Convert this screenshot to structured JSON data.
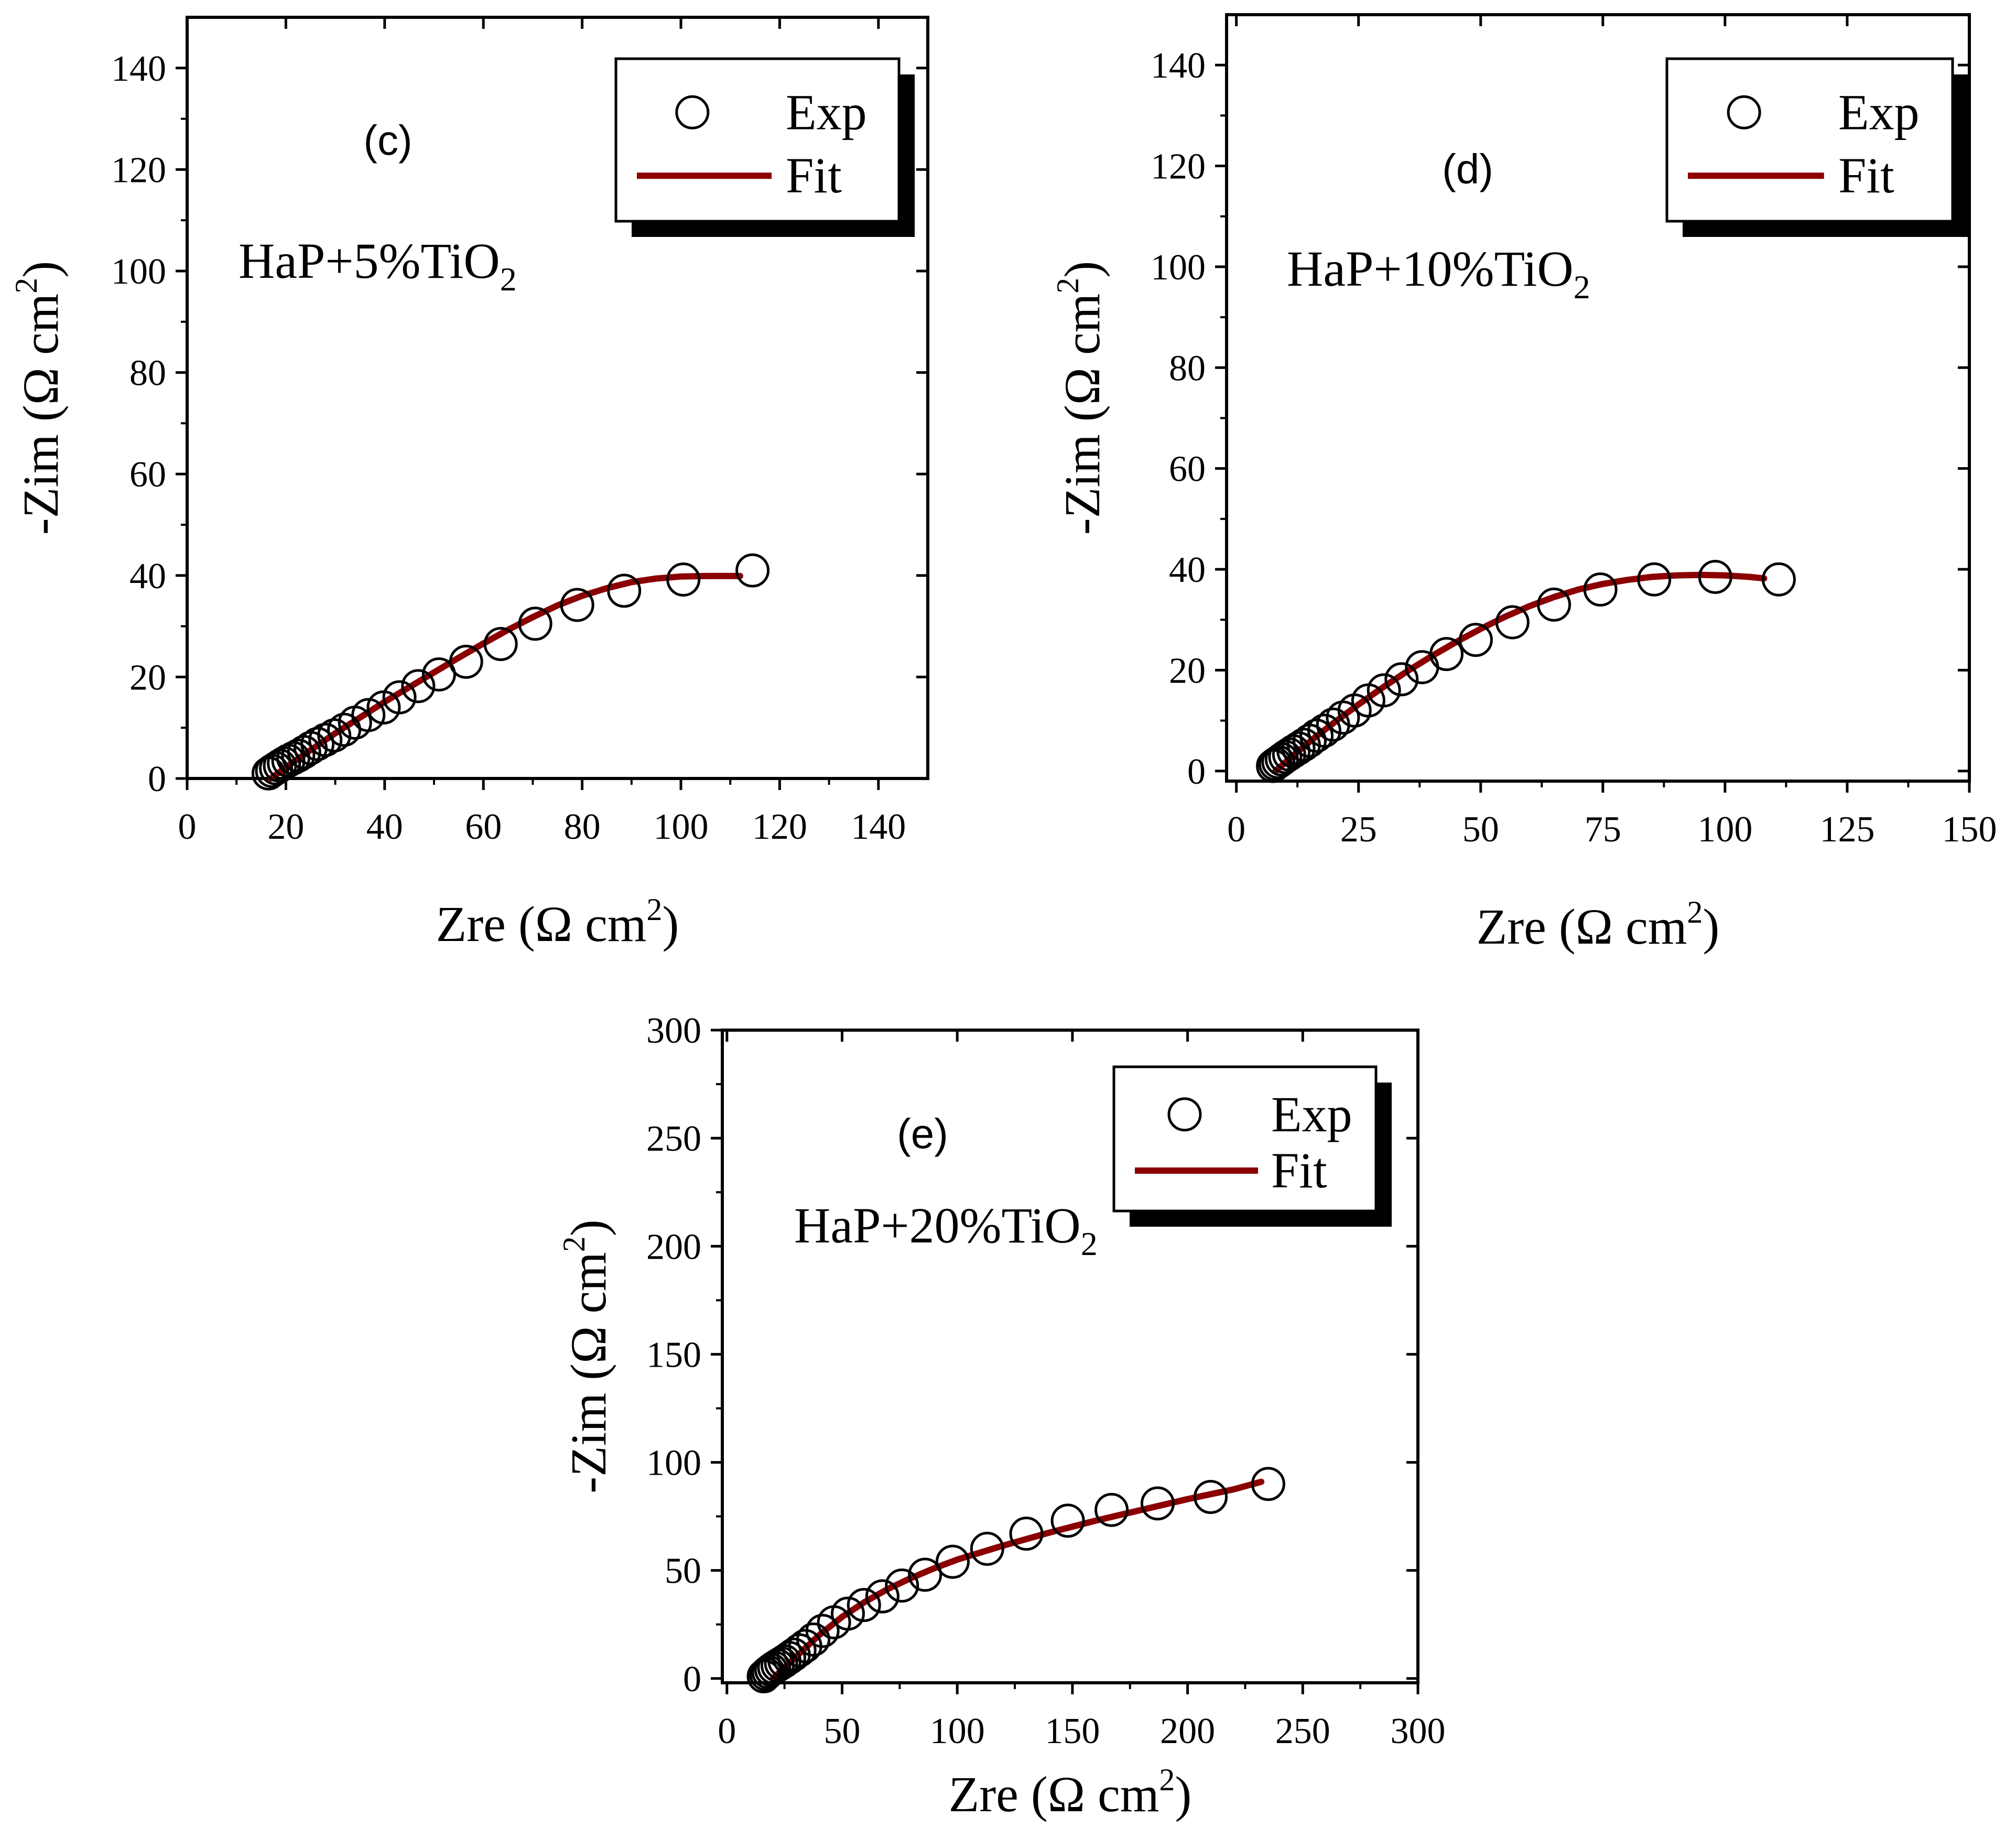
{
  "colors": {
    "fit": "#8b0000",
    "axis": "#000000",
    "marker_stroke": "#000000",
    "background": "#ffffff"
  },
  "chart_data": [
    {
      "id": "c",
      "type": "scatter",
      "tag": "(c)",
      "sample_prefix": "HaP+5%TiO",
      "sample_sub": "2",
      "xlabel_main": "Zre (Ω cm",
      "xlabel_sup": "2",
      "xlabel_end": ")",
      "ylabel_main": "-Zim  (Ω cm",
      "ylabel_sup": "2",
      "ylabel_end": ")",
      "xlim": [
        0,
        150
      ],
      "ylim": [
        0,
        150
      ],
      "xticks": [
        "0",
        "20",
        "40",
        "60",
        "80",
        "100",
        "120",
        "140"
      ],
      "xtick_values": [
        0,
        20,
        40,
        60,
        80,
        100,
        120,
        140
      ],
      "yticks": [
        "0",
        "20",
        "40",
        "60",
        "80",
        "100",
        "120",
        "140"
      ],
      "ytick_values": [
        0,
        20,
        40,
        60,
        80,
        100,
        120,
        140
      ],
      "legend": {
        "exp": "Exp",
        "fit": "Fit"
      },
      "series": [
        {
          "name": "Exp",
          "kind": "markers",
          "x": [
            16.5,
            17.2,
            18,
            18.8,
            19.6,
            20.5,
            21.5,
            22.5,
            23.7,
            25,
            26.4,
            28,
            29.8,
            31.8,
            34,
            36.7,
            39.8,
            43,
            46.8,
            51,
            56.5,
            63.5,
            70.5,
            79,
            88.5,
            100.5,
            114.5
          ],
          "y": [
            1,
            1.5,
            2,
            2.5,
            3,
            3.5,
            4,
            4.5,
            5.2,
            6,
            6.8,
            7.6,
            8.5,
            9.6,
            11,
            12.5,
            14,
            16,
            18.2,
            20.5,
            23,
            26.5,
            30.5,
            34.2,
            37,
            39.2,
            41
          ]
        },
        {
          "name": "Fit",
          "kind": "line",
          "x": [
            17,
            20,
            25,
            30,
            35,
            40,
            45,
            50,
            55,
            60,
            65,
            70,
            75,
            80,
            85,
            90,
            95,
            100,
            105,
            112
          ],
          "y": [
            0,
            2.2,
            5.6,
            8.9,
            12,
            15.1,
            18,
            20.9,
            23.8,
            26.6,
            29.3,
            31.8,
            34.1,
            36,
            37.5,
            38.7,
            39.4,
            39.8,
            39.9,
            39.9
          ]
        }
      ]
    },
    {
      "id": "d",
      "type": "scatter",
      "tag": "(d)",
      "sample_prefix": "HaP+10%TiO",
      "sample_sub": "2",
      "xlabel_main": "Zre (Ω cm",
      "xlabel_sup": "2",
      "xlabel_end": ")",
      "ylabel_main": "-Zim  (Ω cm",
      "ylabel_sup": "2",
      "ylabel_end": ")",
      "xlim": [
        -2,
        150
      ],
      "ylim": [
        -2,
        150
      ],
      "xticks": [
        "0",
        "25",
        "50",
        "75",
        "100",
        "125",
        "150"
      ],
      "xtick_values": [
        0,
        25,
        50,
        75,
        100,
        125,
        150
      ],
      "yticks": [
        "0",
        "20",
        "40",
        "60",
        "80",
        "100",
        "120",
        "140"
      ],
      "ytick_values": [
        0,
        20,
        40,
        60,
        80,
        100,
        120,
        140
      ],
      "legend": {
        "exp": "Exp",
        "fit": "Fit"
      },
      "series": [
        {
          "name": "Exp",
          "kind": "markers",
          "x": [
            7.5,
            8,
            8.6,
            9.3,
            10,
            10.8,
            11.7,
            12.7,
            13.8,
            15,
            16.4,
            18,
            19.8,
            21.8,
            24.2,
            27,
            30.2,
            33.8,
            38,
            43,
            49,
            56.5,
            65,
            74.5,
            85.5,
            98,
            111
          ],
          "y": [
            1,
            1.4,
            1.8,
            2.3,
            2.8,
            3.3,
            3.9,
            4.5,
            5.2,
            6,
            7,
            8,
            9.2,
            10.6,
            12,
            14,
            16,
            18.2,
            20.6,
            23.2,
            26,
            29.5,
            33,
            36,
            38,
            38.5,
            38
          ]
        },
        {
          "name": "Fit",
          "kind": "line",
          "x": [
            8,
            12,
            16,
            20,
            25,
            30,
            35,
            40,
            45,
            50,
            55,
            60,
            65,
            70,
            75,
            80,
            85,
            90,
            95,
            100,
            105,
            108
          ],
          "y": [
            0,
            3.4,
            6.6,
            9.6,
            13.2,
            16.6,
            19.8,
            22.8,
            25.6,
            28.2,
            30.6,
            32.7,
            34.5,
            36,
            37.1,
            37.9,
            38.5,
            38.8,
            38.9,
            38.8,
            38.5,
            38.2
          ]
        }
      ]
    },
    {
      "id": "e",
      "type": "scatter",
      "tag": "(e)",
      "sample_prefix": "HaP+20%TiO",
      "sample_sub": "2",
      "xlabel_main": "Zre (Ω cm",
      "xlabel_sup": "2",
      "xlabel_end": ")",
      "ylabel_main": "-Zim  (Ω cm",
      "ylabel_sup": "2",
      "ylabel_end": ")",
      "xlim": [
        -2,
        300
      ],
      "ylim": [
        -2,
        300
      ],
      "xticks": [
        "0",
        "50",
        "100",
        "150",
        "200",
        "250",
        "300"
      ],
      "xtick_values": [
        0,
        50,
        100,
        150,
        200,
        250,
        300
      ],
      "yticks": [
        "0",
        "50",
        "100",
        "150",
        "200",
        "250",
        "300"
      ],
      "ytick_values": [
        0,
        50,
        100,
        150,
        200,
        250,
        300
      ],
      "legend": {
        "exp": "Exp",
        "fit": "Fit"
      },
      "series": [
        {
          "name": "Exp",
          "kind": "markers",
          "x": [
            16,
            17,
            18,
            19.2,
            20.5,
            22,
            23.5,
            25,
            27,
            29,
            31.5,
            34,
            37.5,
            41.5,
            46.5,
            52.5,
            59.5,
            67.5,
            76,
            86,
            98,
            113,
            130,
            148,
            167,
            187,
            210,
            235
          ],
          "y": [
            1,
            2,
            3,
            4,
            5,
            6,
            7,
            8,
            9.5,
            11,
            13,
            15,
            18,
            22,
            26,
            30,
            34,
            38,
            43,
            48,
            54,
            60,
            67,
            73,
            78,
            81,
            84,
            90
          ]
        },
        {
          "name": "Fit",
          "kind": "line",
          "x": [
            20,
            25,
            30,
            40,
            50,
            60,
            70,
            80,
            90,
            100,
            120,
            140,
            160,
            180,
            200,
            220,
            232
          ],
          "y": [
            0,
            5,
            10,
            20,
            28.5,
            35.5,
            41.5,
            46.5,
            51,
            55,
            61.5,
            67.5,
            73,
            78,
            83,
            87.5,
            91
          ]
        }
      ]
    }
  ]
}
